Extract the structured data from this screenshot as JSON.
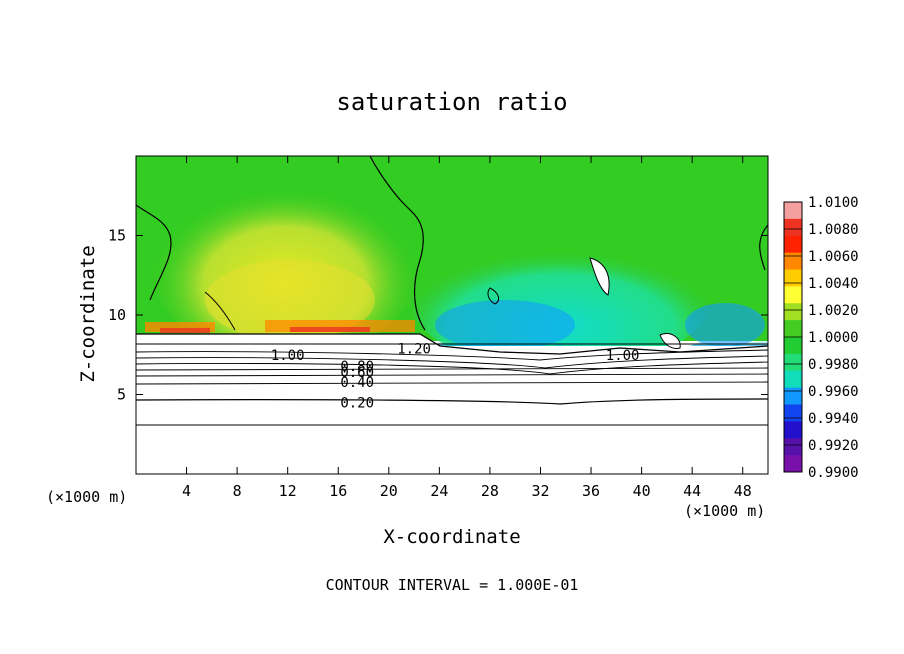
{
  "chart_data": {
    "type": "heatmap",
    "title": "saturation ratio",
    "xlabel": "X-coordinate",
    "ylabel": "Z-coordinate",
    "x_unit": "(×1000 m)",
    "x_range": [
      0,
      50
    ],
    "y_range": [
      0,
      20
    ],
    "x_ticks": [
      "4",
      "8",
      "12",
      "16",
      "20",
      "24",
      "28",
      "32",
      "36",
      "40",
      "44",
      "48"
    ],
    "y_ticks": [
      "5",
      "10",
      "15"
    ],
    "colorbar": {
      "ticks": [
        "1.0100",
        "1.0080",
        "1.0060",
        "1.0040",
        "1.0020",
        "1.0000",
        "0.9980",
        "0.9960",
        "0.9940",
        "0.9920",
        "0.9900"
      ],
      "colors": [
        "#f4a0a0",
        "#ee3322",
        "#ff2200",
        "#ff8800",
        "#ffcc00",
        "#ffff33",
        "#a0e020",
        "#44cc22",
        "#22cc33",
        "#22dd77",
        "#11ddbb",
        "#1199ff",
        "#1144ee",
        "#2211cc",
        "#5511aa",
        "#7711aa"
      ]
    },
    "contour_labels": [
      {
        "text": "1.00",
        "x": 12,
        "z": 7.5
      },
      {
        "text": "1.20",
        "x": 22,
        "z": 7.9
      },
      {
        "text": "0.80",
        "x": 17.5,
        "z": 6.8
      },
      {
        "text": "0.60",
        "x": 17.5,
        "z": 6.4
      },
      {
        "text": "0.40",
        "x": 17.5,
        "z": 5.8
      },
      {
        "text": "0.20",
        "x": 17.5,
        "z": 4.5
      },
      {
        "text": "1.00",
        "x": 38.5,
        "z": 7.5
      }
    ],
    "contour_interval": "CONTOUR INTERVAL = 1.000E-01"
  }
}
